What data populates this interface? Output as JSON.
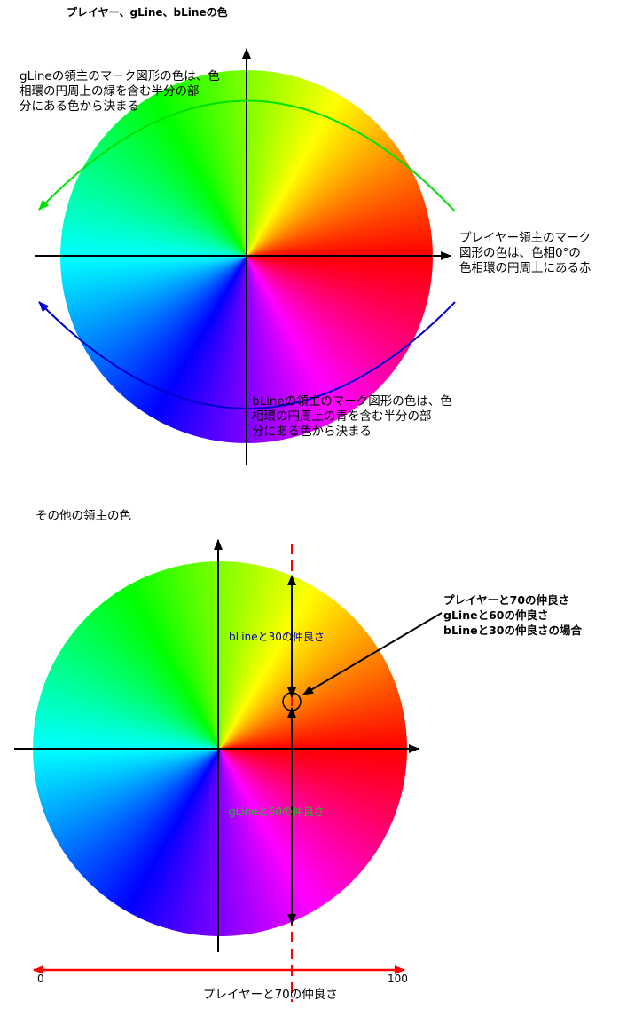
{
  "top": {
    "title": "プレイヤー、gLine、bLineの色",
    "gline_note": [
      "gLineの領主のマーク図形の色は、色",
      "相環の円周上の緑を含む半分の部",
      "分にある色から決まる"
    ],
    "player_note": [
      "プレイヤー領主のマーク",
      "図形の色は、色相0°の",
      "色相環の円周上にある赤"
    ],
    "bline_note": [
      "bLineの領主のマーク図形の色は、色",
      "相環の円周上の青を含む半分の部",
      "分にある色から決まる"
    ]
  },
  "bottom": {
    "title": "その他の領主の色",
    "example_note": [
      "プレイヤーと70の仲良さ",
      "gLineと60の仲良さ",
      "bLineと30の仲良さの場合"
    ],
    "bline_label": "bLineと30の仲良さ",
    "gline_label": "gLineと60の仲良さ",
    "axis_min": "0",
    "axis_max": "100",
    "axis_label": "プレイヤーと70の仲良さ"
  },
  "colors": {
    "green_arc": "#00e000",
    "blue_arc": "#0000cc",
    "red_axis": "#ff0000",
    "bline_text": "#0000aa",
    "gline_text": "#22bb22"
  }
}
